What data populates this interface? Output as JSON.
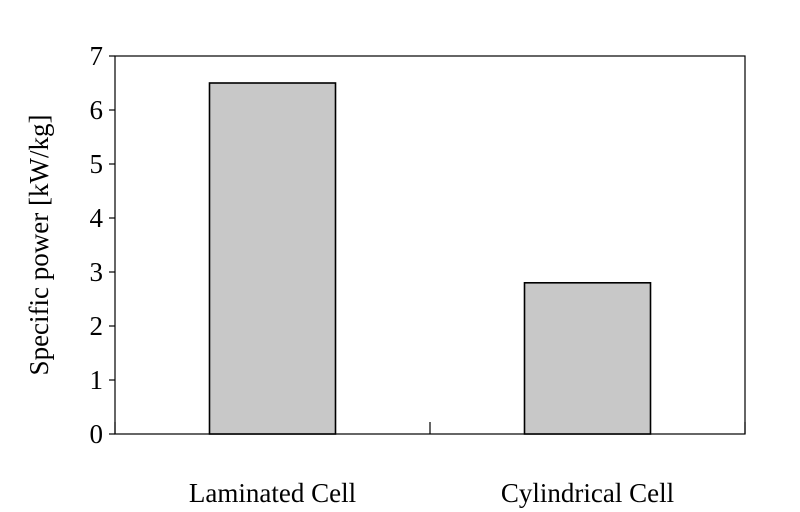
{
  "chart_data": {
    "type": "bar",
    "title": "",
    "xlabel": "",
    "ylabel": "Specific power [kW/kg]",
    "categories": [
      "Laminated Cell",
      "Cylindrical Cell"
    ],
    "values": [
      6.5,
      2.8
    ],
    "ylim": [
      0,
      7
    ],
    "yticks": [
      "0",
      "1",
      "2",
      "3",
      "4",
      "5",
      "6",
      "7"
    ],
    "grid": false,
    "legend": "none",
    "bar_color": "#c8c8c8",
    "bar_edge_color": "#000000"
  }
}
